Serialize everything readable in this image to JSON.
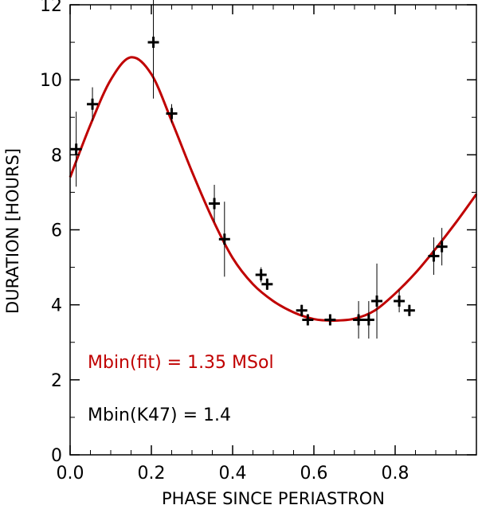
{
  "chart_data": {
    "type": "scatter",
    "title": "",
    "xlabel": "PHASE SINCE PERIASTRON",
    "ylabel": "DURATION [HOURS]",
    "xlim": [
      0.0,
      1.0
    ],
    "ylim": [
      0,
      12
    ],
    "x_ticks": [
      0.0,
      0.2,
      0.4,
      0.6,
      0.8
    ],
    "x_tick_labels": [
      "0.0",
      "0.2",
      "0.4",
      "0.6",
      "0.8"
    ],
    "y_ticks": [
      0,
      2,
      4,
      6,
      8,
      10,
      12
    ],
    "y_tick_labels": [
      "0",
      "2",
      "4",
      "6",
      "8",
      "10",
      "12"
    ],
    "series": [
      {
        "name": "observed",
        "color": "#000000",
        "points": [
          {
            "x": 0.015,
            "y": 8.15,
            "err": 1.0
          },
          {
            "x": 0.055,
            "y": 9.35,
            "err": 0.45
          },
          {
            "x": 0.205,
            "y": 11.0,
            "err": 1.5
          },
          {
            "x": 0.25,
            "y": 9.1,
            "err": 0.25
          },
          {
            "x": 0.355,
            "y": 6.7,
            "err": 0.5
          },
          {
            "x": 0.38,
            "y": 5.75,
            "err": 1.0
          },
          {
            "x": 0.47,
            "y": 4.8,
            "err": 0.2
          },
          {
            "x": 0.485,
            "y": 4.55,
            "err": 0.15
          },
          {
            "x": 0.57,
            "y": 3.85,
            "err": 0.15
          },
          {
            "x": 0.585,
            "y": 3.6,
            "err": 0.15
          },
          {
            "x": 0.64,
            "y": 3.6,
            "err": 0.15
          },
          {
            "x": 0.71,
            "y": 3.6,
            "err": 0.5
          },
          {
            "x": 0.735,
            "y": 3.6,
            "err": 0.5
          },
          {
            "x": 0.755,
            "y": 4.1,
            "err": 1.0
          },
          {
            "x": 0.81,
            "y": 4.1,
            "err": 0.3
          },
          {
            "x": 0.835,
            "y": 3.85,
            "err": 0.15
          },
          {
            "x": 0.895,
            "y": 5.3,
            "err": 0.5
          },
          {
            "x": 0.915,
            "y": 5.55,
            "err": 0.5
          }
        ]
      },
      {
        "name": "fit",
        "type": "line",
        "color": "#c00000",
        "x": [
          0.0,
          0.05,
          0.1,
          0.15,
          0.2,
          0.25,
          0.3,
          0.35,
          0.4,
          0.45,
          0.5,
          0.55,
          0.6,
          0.65,
          0.7,
          0.75,
          0.8,
          0.85,
          0.9,
          0.95,
          1.0
        ],
        "y": [
          7.4,
          8.8,
          10.0,
          10.6,
          10.15,
          8.9,
          7.55,
          6.3,
          5.25,
          4.55,
          4.1,
          3.8,
          3.62,
          3.58,
          3.63,
          3.85,
          4.3,
          4.85,
          5.5,
          6.2,
          6.95
        ]
      }
    ],
    "annotations": [
      {
        "text": "Mbin(fit) = 1.35 MSol",
        "color": "#c00000"
      },
      {
        "text": "Mbin(K47) = 1.4",
        "color": "#000000"
      }
    ]
  }
}
